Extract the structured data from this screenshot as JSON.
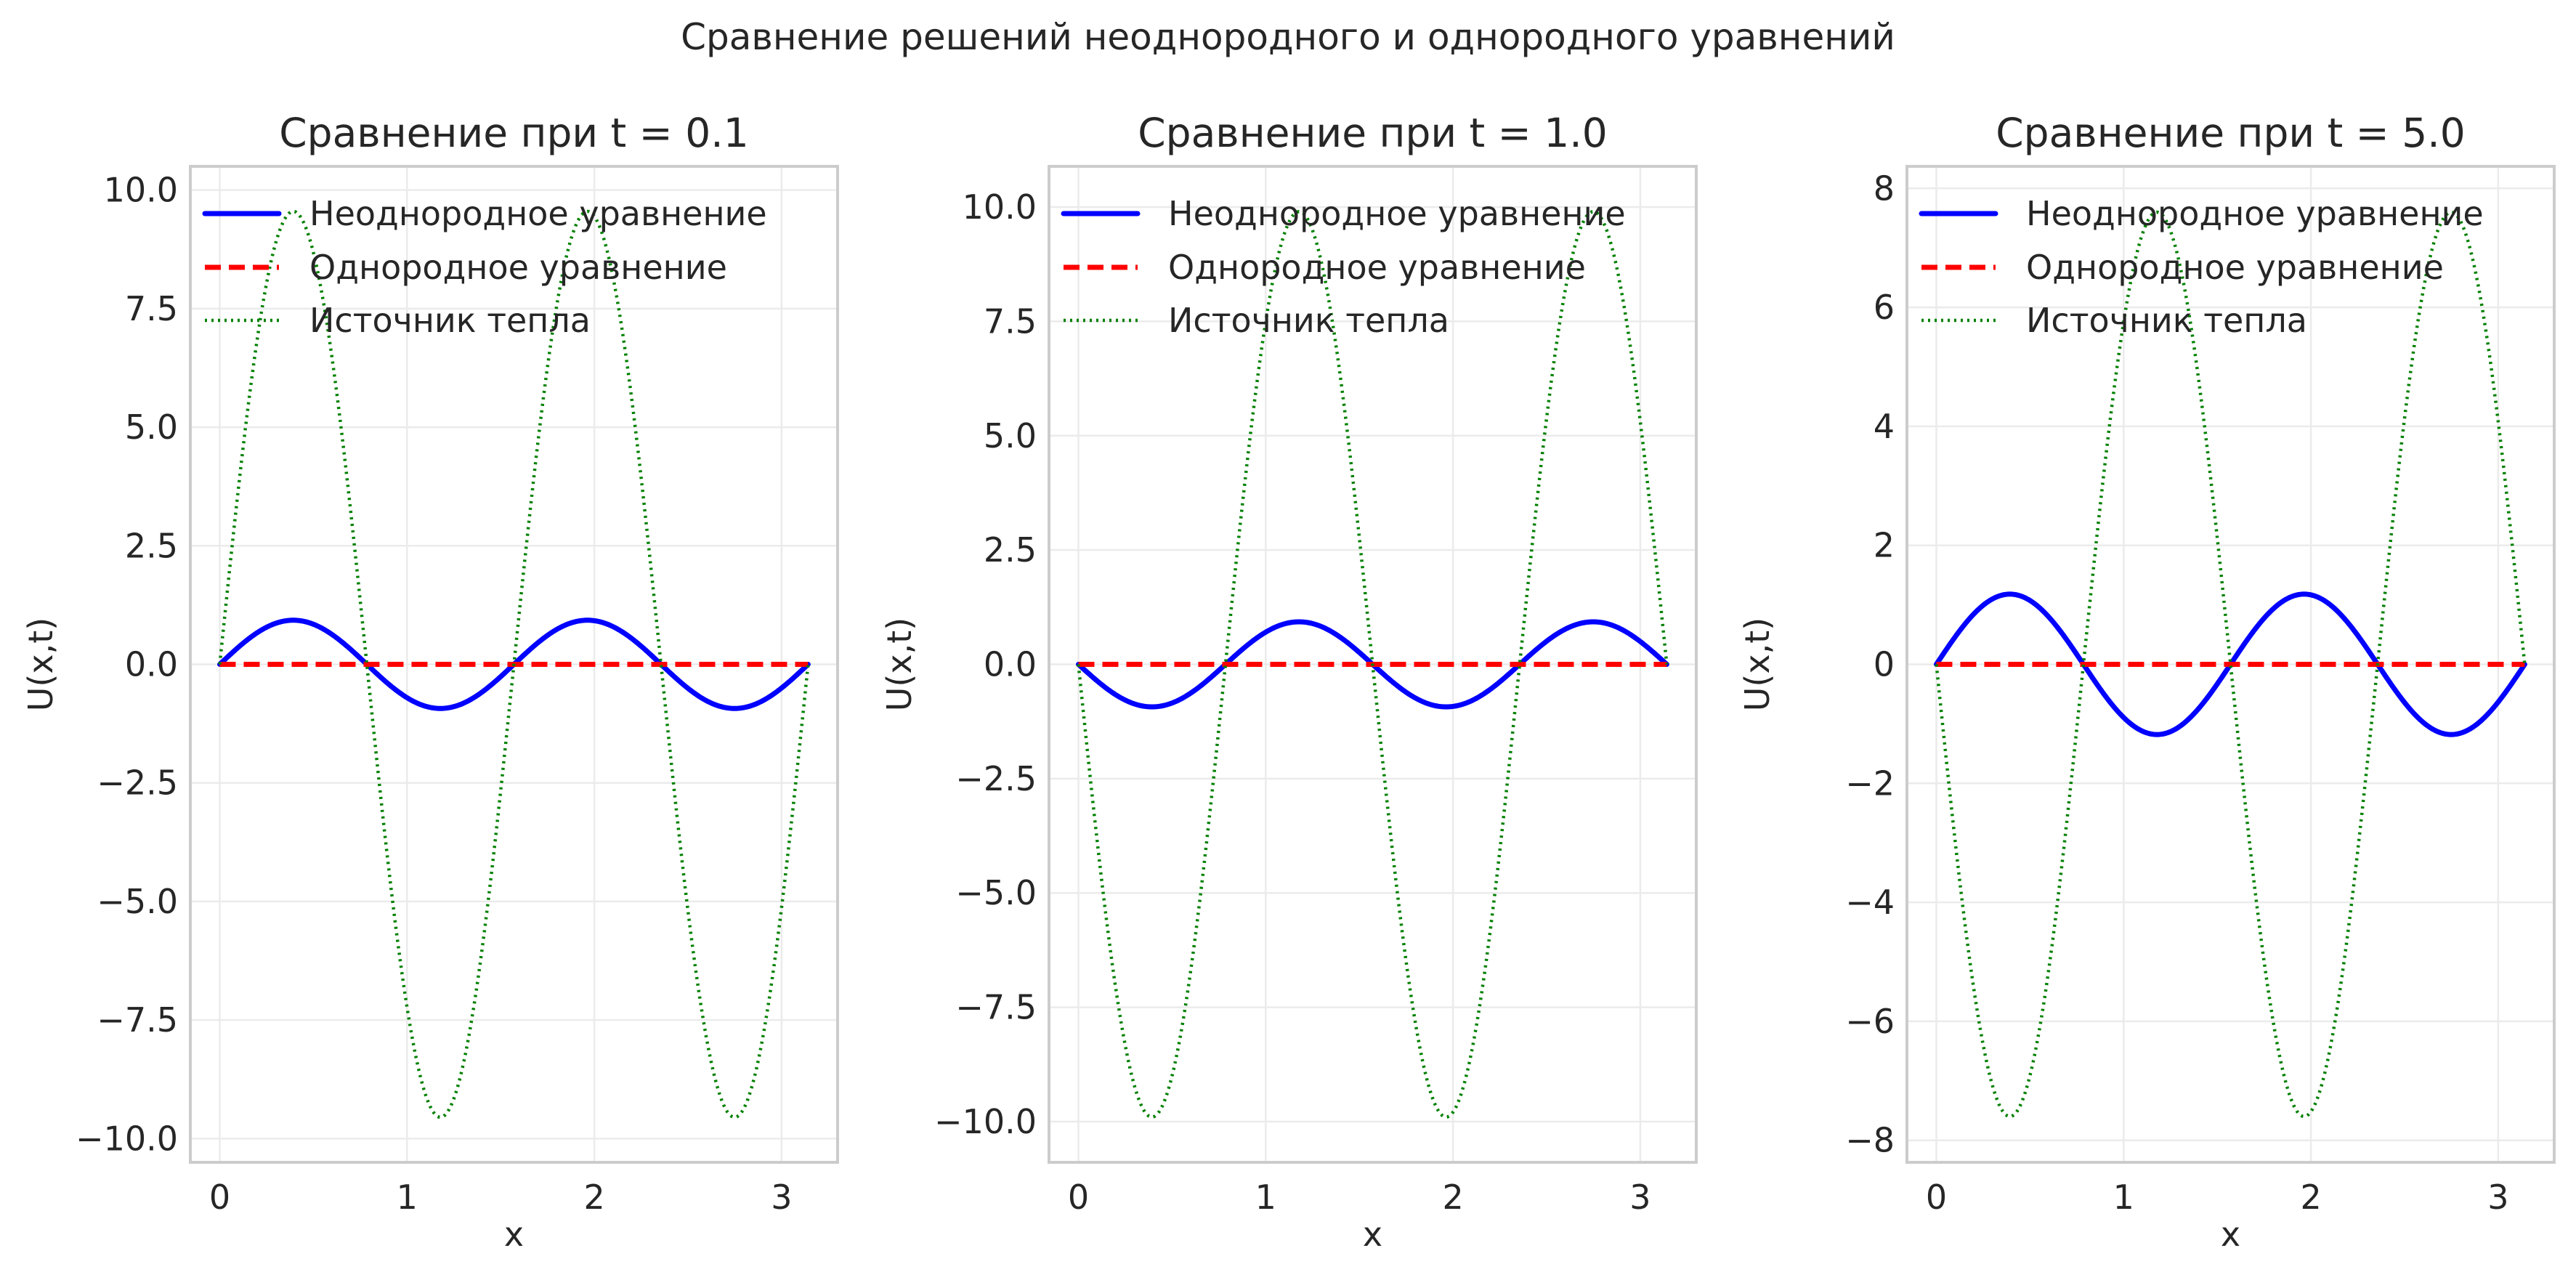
{
  "figure": {
    "suptitle": "Сравнение решений неоднородного и однородного уравнений",
    "colors": {
      "inhomogeneous": "#0000ff",
      "homogeneous": "#ff0000",
      "source": "#008000",
      "grid": "#ebebeb",
      "spine": "#cccccc",
      "text": "#262626"
    }
  },
  "chart_data": [
    {
      "type": "line",
      "title": "Сравнение при t = 0.1",
      "t": 0.1,
      "xlabel": "x",
      "ylabel": "U(x,t)",
      "xlim": [
        -0.157,
        3.299
      ],
      "ylim": [
        -10.5,
        10.5
      ],
      "xticks": [
        0,
        1,
        2,
        3
      ],
      "xtick_labels": [
        "0",
        "1",
        "2",
        "3"
      ],
      "yticks": [
        -10,
        -7.5,
        -5,
        -2.5,
        0,
        2.5,
        5,
        7.5,
        10
      ],
      "ytick_labels": [
        "−10.0",
        "−7.5",
        "−5.0",
        "−2.5",
        "0.0",
        "2.5",
        "5.0",
        "7.5",
        "10.0"
      ],
      "grid": true,
      "legend_position": "upper left",
      "x_domain": [
        0,
        3.14159
      ],
      "series": [
        {
          "name": "Неоднородное уравнение",
          "style": "solid",
          "color": "#0000ff",
          "formula": "0.93*sin(4x)",
          "amplitude": 0.93,
          "peak_x": [
            0.39,
            1.96
          ],
          "trough_x": [
            1.18,
            2.75
          ]
        },
        {
          "name": "Однородное уравнение",
          "style": "dashed",
          "color": "#ff0000",
          "formula": "0",
          "amplitude": 0.0
        },
        {
          "name": "Источник тепла",
          "style": "dotted",
          "color": "#008000",
          "formula": "9.55*sin(4x)",
          "amplitude": 9.55,
          "peak_x": [
            0.39,
            1.96
          ],
          "trough_x": [
            1.18,
            2.75
          ]
        }
      ]
    },
    {
      "type": "line",
      "title": "Сравнение при t = 1.0",
      "t": 1.0,
      "xlabel": "x",
      "ylabel": "U(x,t)",
      "xlim": [
        -0.157,
        3.299
      ],
      "ylim": [
        -10.89,
        10.89
      ],
      "xticks": [
        0,
        1,
        2,
        3
      ],
      "xtick_labels": [
        "0",
        "1",
        "2",
        "3"
      ],
      "yticks": [
        -10,
        -7.5,
        -5,
        -2.5,
        0,
        2.5,
        5,
        7.5,
        10
      ],
      "ytick_labels": [
        "−10.0",
        "−7.5",
        "−5.0",
        "−2.5",
        "0.0",
        "2.5",
        "5.0",
        "7.5",
        "10.0"
      ],
      "grid": true,
      "legend_position": "upper left",
      "x_domain": [
        0,
        3.14159
      ],
      "series": [
        {
          "name": "Неоднородное уравнение",
          "style": "solid",
          "color": "#0000ff",
          "formula": "-0.93*sin(4x)",
          "amplitude": -0.93,
          "peak_x": [
            1.18,
            2.75
          ],
          "trough_x": [
            0.39,
            1.96
          ]
        },
        {
          "name": "Однородное уравнение",
          "style": "dashed",
          "color": "#ff0000",
          "formula": "0",
          "amplitude": 0.0
        },
        {
          "name": "Источник тепла",
          "style": "dotted",
          "color": "#008000",
          "formula": "-9.9*sin(4x)",
          "amplitude": -9.9,
          "peak_x": [
            1.18,
            2.75
          ],
          "trough_x": [
            0.39,
            1.96
          ]
        }
      ]
    },
    {
      "type": "line",
      "title": "Сравнение при t = 5.0",
      "t": 5.0,
      "xlabel": "x",
      "ylabel": "U(x,t)",
      "xlim": [
        -0.157,
        3.299
      ],
      "ylim": [
        -8.37,
        8.37
      ],
      "xticks": [
        0,
        1,
        2,
        3
      ],
      "xtick_labels": [
        "0",
        "1",
        "2",
        "3"
      ],
      "yticks": [
        -8,
        -6,
        -4,
        -2,
        0,
        2,
        4,
        6,
        8
      ],
      "ytick_labels": [
        "−8",
        "−6",
        "−4",
        "−2",
        "0",
        "2",
        "4",
        "6",
        "8"
      ],
      "grid": true,
      "legend_position": "upper left",
      "x_domain": [
        0,
        3.14159
      ],
      "series": [
        {
          "name": "Неоднородное уравнение",
          "style": "solid",
          "color": "#0000ff",
          "formula": "1.18*sin(4x)",
          "amplitude": 1.18,
          "peak_x": [
            0.39,
            1.96
          ],
          "trough_x": [
            1.18,
            2.75
          ]
        },
        {
          "name": "Однородное уравнение",
          "style": "dashed",
          "color": "#ff0000",
          "formula": "0",
          "amplitude": 0.0
        },
        {
          "name": "Источник тепла",
          "style": "dotted",
          "color": "#008000",
          "formula": "-7.6*sin(4x)",
          "amplitude": -7.6,
          "peak_x": [
            1.18,
            2.75
          ],
          "trough_x": [
            0.39,
            1.96
          ]
        }
      ]
    }
  ]
}
